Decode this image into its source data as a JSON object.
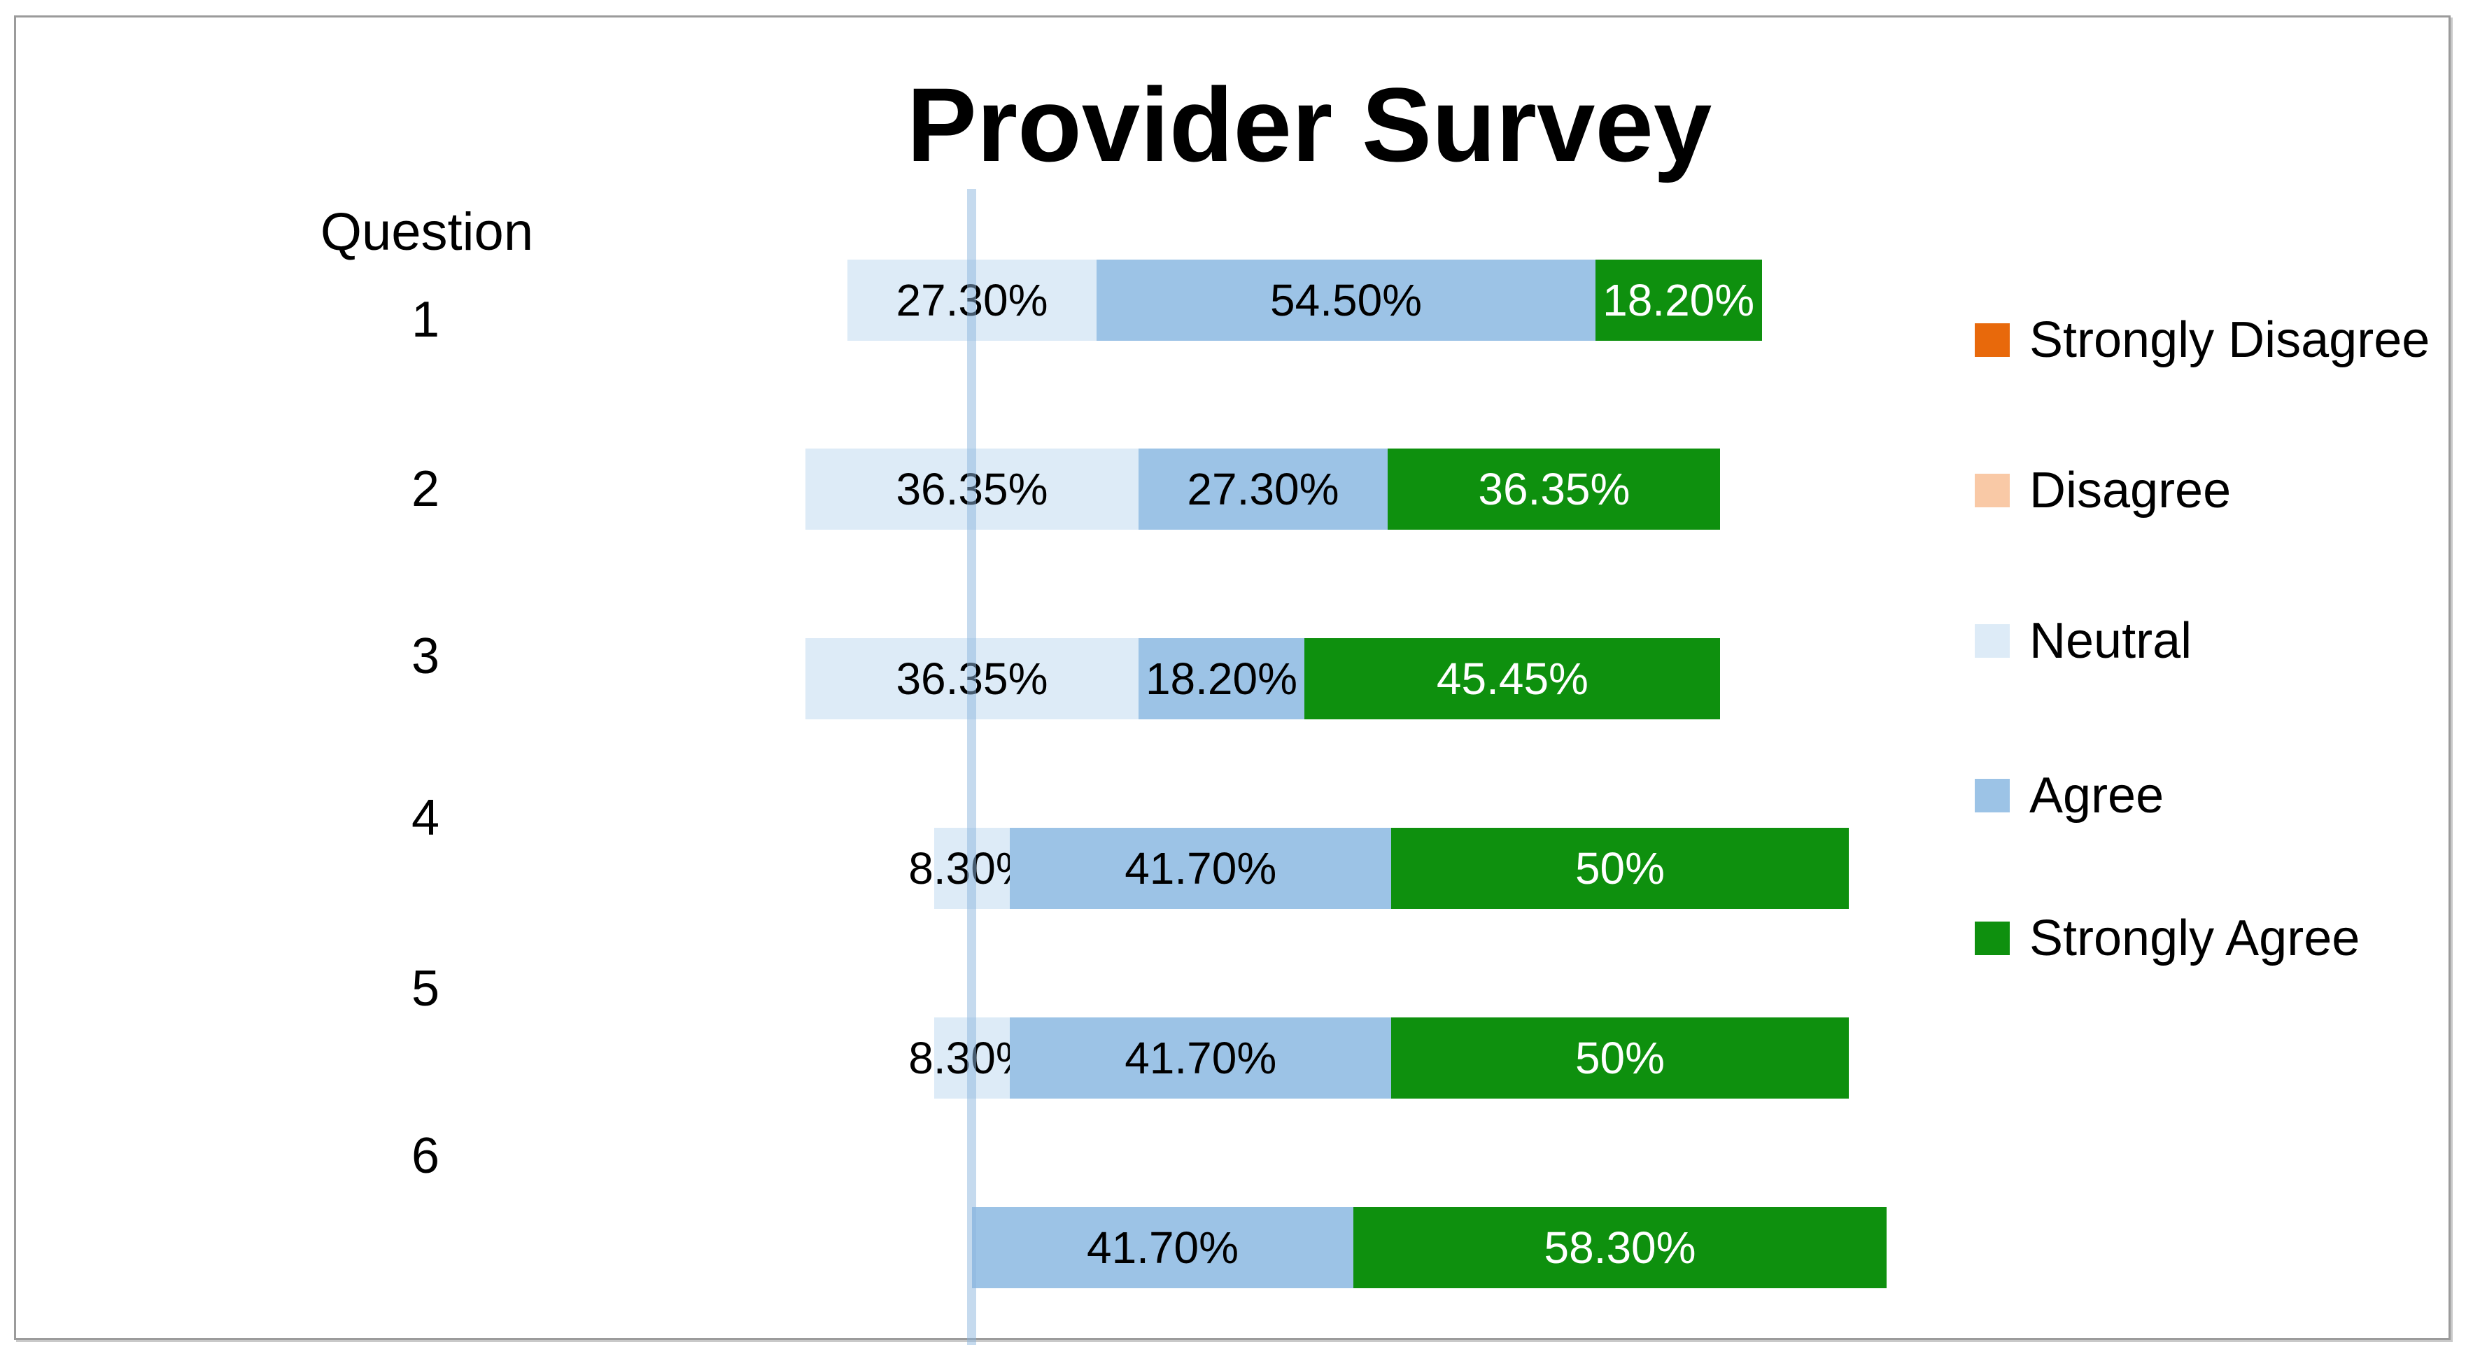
{
  "title": "Provider Survey",
  "axis": {
    "category_header": "Question"
  },
  "frame": {
    "border_color": "#9b9b9b",
    "background": "#ffffff"
  },
  "colors": {
    "strongly_disagree": "#E8690B",
    "disagree": "#F9C9A6",
    "neutral": "#DDEBF7",
    "agree": "#9CC3E6",
    "strongly_agree": "#0E900E",
    "axis_line": "#BCD6EB",
    "label_dark": "#000000",
    "label_light": "#FFFFFF"
  },
  "legend": [
    {
      "label": "Strongly Disagree",
      "color": "#E8690B"
    },
    {
      "label": "Disagree",
      "color": "#F9C9A6"
    },
    {
      "label": "Neutral",
      "color": "#DDEBF7"
    },
    {
      "label": "Agree",
      "color": "#9CC3E6"
    },
    {
      "label": "Strongly Agree",
      "color": "#0E900E"
    }
  ],
  "chart_data": {
    "type": "bar",
    "subtype": "diverging-stacked-horizontal-likert",
    "title": "Provider Survey",
    "category_axis_label": "Question",
    "categories": [
      "1",
      "2",
      "3",
      "4",
      "5",
      "6"
    ],
    "legend_position": "right",
    "grid": false,
    "baseline_note": "Neutral segment is centered on the vertical axis line; agree side extends right",
    "series": [
      {
        "name": "Strongly Disagree",
        "color": "#E8690B",
        "text_color": "#FFFFFF",
        "values": [
          0,
          0,
          0,
          0,
          0,
          0
        ],
        "labels": [
          "",
          "",
          "",
          "",
          "",
          ""
        ]
      },
      {
        "name": "Disagree",
        "color": "#F9C9A6",
        "text_color": "#000000",
        "values": [
          0,
          0,
          0,
          0,
          0,
          0
        ],
        "labels": [
          "",
          "",
          "",
          "",
          "",
          ""
        ]
      },
      {
        "name": "Neutral",
        "color": "#DDEBF7",
        "text_color": "#000000",
        "values": [
          27.3,
          36.35,
          36.35,
          8.3,
          8.3,
          0
        ],
        "labels": [
          "27.30%",
          "36.35%",
          "36.35%",
          "8.30%",
          "8.30%",
          ""
        ]
      },
      {
        "name": "Agree",
        "color": "#9CC3E6",
        "text_color": "#000000",
        "values": [
          54.5,
          27.3,
          18.2,
          41.7,
          41.7,
          41.7
        ],
        "labels": [
          "54.50%",
          "27.30%",
          "18.20%",
          "41.70%",
          "41.70%",
          "41.70%"
        ]
      },
      {
        "name": "Strongly Agree",
        "color": "#0E900E",
        "text_color": "#FFFFFF",
        "values": [
          18.2,
          36.35,
          45.45,
          50,
          50,
          58.3
        ],
        "labels": [
          "18.20%",
          "36.35%",
          "45.45%",
          "50%",
          "50%",
          "58.30%"
        ]
      }
    ]
  }
}
